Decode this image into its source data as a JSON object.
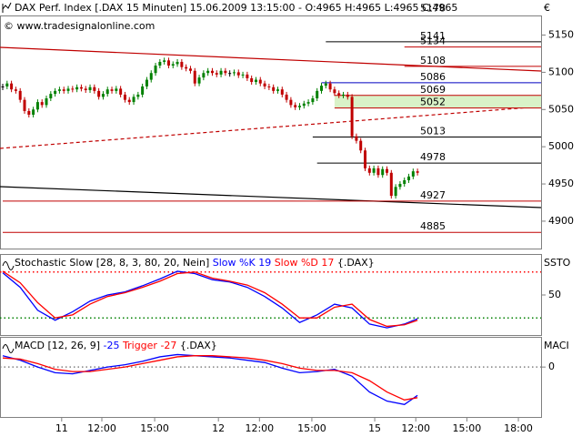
{
  "chart_data": [
    {
      "type": "candlestick",
      "title": "DAX Perf. Index [.DAX  15 Minuten] 15.06.2009 13:15:00 - O:4965 H:4965 L:4965 C:4965",
      "copyright": "© www.tradesignalonline.com",
      "currency": "€",
      "xlim": [
        0,
        123.3
      ],
      "ylim": [
        4862,
        5180
      ],
      "yticks": [
        4900,
        4950,
        5000,
        5050,
        5100,
        5150
      ],
      "up_color": "#008000",
      "down_color": "#c00000",
      "close": [
        5081,
        5085,
        5077,
        5075,
        5063,
        5048,
        5043,
        5050,
        5060,
        5056,
        5065,
        5071,
        5075,
        5077,
        5075,
        5078,
        5077,
        5080,
        5078,
        5076,
        5080,
        5075,
        5067,
        5071,
        5077,
        5075,
        5078,
        5070,
        5063,
        5060,
        5067,
        5070,
        5081,
        5090,
        5099,
        5109,
        5114,
        5116,
        5109,
        5111,
        5114,
        5107,
        5105,
        5102,
        5085,
        5093,
        5099,
        5102,
        5099,
        5097,
        5102,
        5099,
        5099,
        5100,
        5096,
        5097,
        5092,
        5087,
        5090,
        5085,
        5081,
        5080,
        5075,
        5077,
        5070,
        5063,
        5056,
        5053,
        5055,
        5058,
        5060,
        5065,
        5075,
        5082,
        5085,
        5077,
        5072,
        5069,
        5070,
        5067,
        5014,
        5008,
        4995,
        4971,
        4965,
        4971,
        4962,
        4970,
        4965,
        4934,
        4946,
        4950,
        4955,
        4960,
        4967,
        4965
      ],
      "levels": [
        {
          "value": 5178,
          "color": "#c00000",
          "from": 72
        },
        {
          "value": 5141,
          "color": "#000000",
          "from": 74
        },
        {
          "value": 5134,
          "color": "#c00000",
          "from": 92
        },
        {
          "value": 5108,
          "color": "#c00000",
          "from": 92
        },
        {
          "value": 5086,
          "color": "#0000c0",
          "from": 73
        },
        {
          "value": 5069,
          "color": "#c00000",
          "from": 76,
          "band_to": 5052,
          "band_color": "#d9f2c8"
        },
        {
          "value": 5052,
          "color": "#c00000",
          "from": 76
        },
        {
          "value": 5013,
          "color": "#000000",
          "from": 71
        },
        {
          "value": 4978,
          "color": "#000000",
          "from": 72
        },
        {
          "value": 4927,
          "color": "#c00000",
          "from": 0
        },
        {
          "value": 4885,
          "color": "#c00000",
          "from": 0
        }
      ]
    },
    {
      "type": "line",
      "title": "Stochastic Slow [28, 8, 3, 80, 20, Nein]",
      "source": "{.DAX}",
      "axis_label": "SSTO",
      "xlim": [
        0,
        123.3
      ],
      "ylim": [
        0,
        100
      ],
      "yticks": [
        50
      ],
      "hlines": [
        {
          "value": 80,
          "color": "#ff0000"
        },
        {
          "value": 20,
          "color": "#008000"
        }
      ],
      "x": [
        0,
        4,
        8,
        12,
        16,
        20,
        24,
        28,
        32,
        36,
        40,
        44,
        48,
        52,
        56,
        60,
        64,
        68,
        72,
        76,
        80,
        84,
        88,
        92,
        95
      ],
      "series": [
        {
          "name": "Slow %K 19",
          "color": "#0000ff",
          "values": [
            79,
            60,
            30,
            17,
            28,
            42,
            50,
            54,
            62,
            71,
            81,
            78,
            70,
            67,
            60,
            48,
            33,
            14,
            24,
            38,
            33,
            12,
            7,
            12,
            19
          ]
        },
        {
          "name": "Slow %D 17",
          "color": "#ff0000",
          "values": [
            81,
            66,
            40,
            20,
            24,
            38,
            48,
            53,
            60,
            68,
            78,
            80,
            72,
            68,
            63,
            53,
            38,
            20,
            20,
            34,
            38,
            18,
            9,
            11,
            17
          ]
        }
      ]
    },
    {
      "type": "line",
      "title": "MACD [12, 26, 9]",
      "source": "{.DAX}",
      "axis_label": "MACI",
      "xlim": [
        0,
        123.3
      ],
      "ylim": [
        -44,
        25
      ],
      "yticks": [
        0
      ],
      "hlines": [
        {
          "value": 0,
          "color": "#808080"
        }
      ],
      "x": [
        0,
        4,
        8,
        12,
        16,
        20,
        24,
        28,
        32,
        36,
        40,
        44,
        48,
        52,
        56,
        60,
        64,
        68,
        72,
        76,
        80,
        84,
        88,
        92,
        95
      ],
      "series": [
        {
          "name": "-25",
          "color": "#0000ff",
          "values": [
            10,
            6,
            0,
            -5,
            -6,
            -3,
            0,
            2,
            5,
            9,
            11,
            10,
            9,
            8,
            6,
            4,
            -1,
            -5,
            -4,
            -2,
            -8,
            -22,
            -30,
            -33,
            -25
          ]
        },
        {
          "name": "Trigger -27",
          "color": "#ff0000",
          "values": [
            8,
            7,
            3,
            -2,
            -4,
            -4,
            -2,
            0,
            3,
            6,
            9,
            10,
            10,
            9,
            8,
            6,
            3,
            -1,
            -3,
            -3,
            -5,
            -12,
            -22,
            -29,
            -27
          ]
        }
      ],
      "xticks": [
        {
          "value": 13.5,
          "label": "11"
        },
        {
          "value": 22.7,
          "label": "12:00"
        },
        {
          "value": 34.8,
          "label": "15:00"
        },
        {
          "value": 49.4,
          "label": "12"
        },
        {
          "value": 58.8,
          "label": "12:00"
        },
        {
          "value": 70.8,
          "label": "15:00"
        },
        {
          "value": 85.2,
          "label": "15"
        },
        {
          "value": 94.6,
          "label": "12:00"
        },
        {
          "value": 106.3,
          "label": "15:00"
        },
        {
          "value": 118.1,
          "label": "18:00"
        }
      ]
    }
  ]
}
